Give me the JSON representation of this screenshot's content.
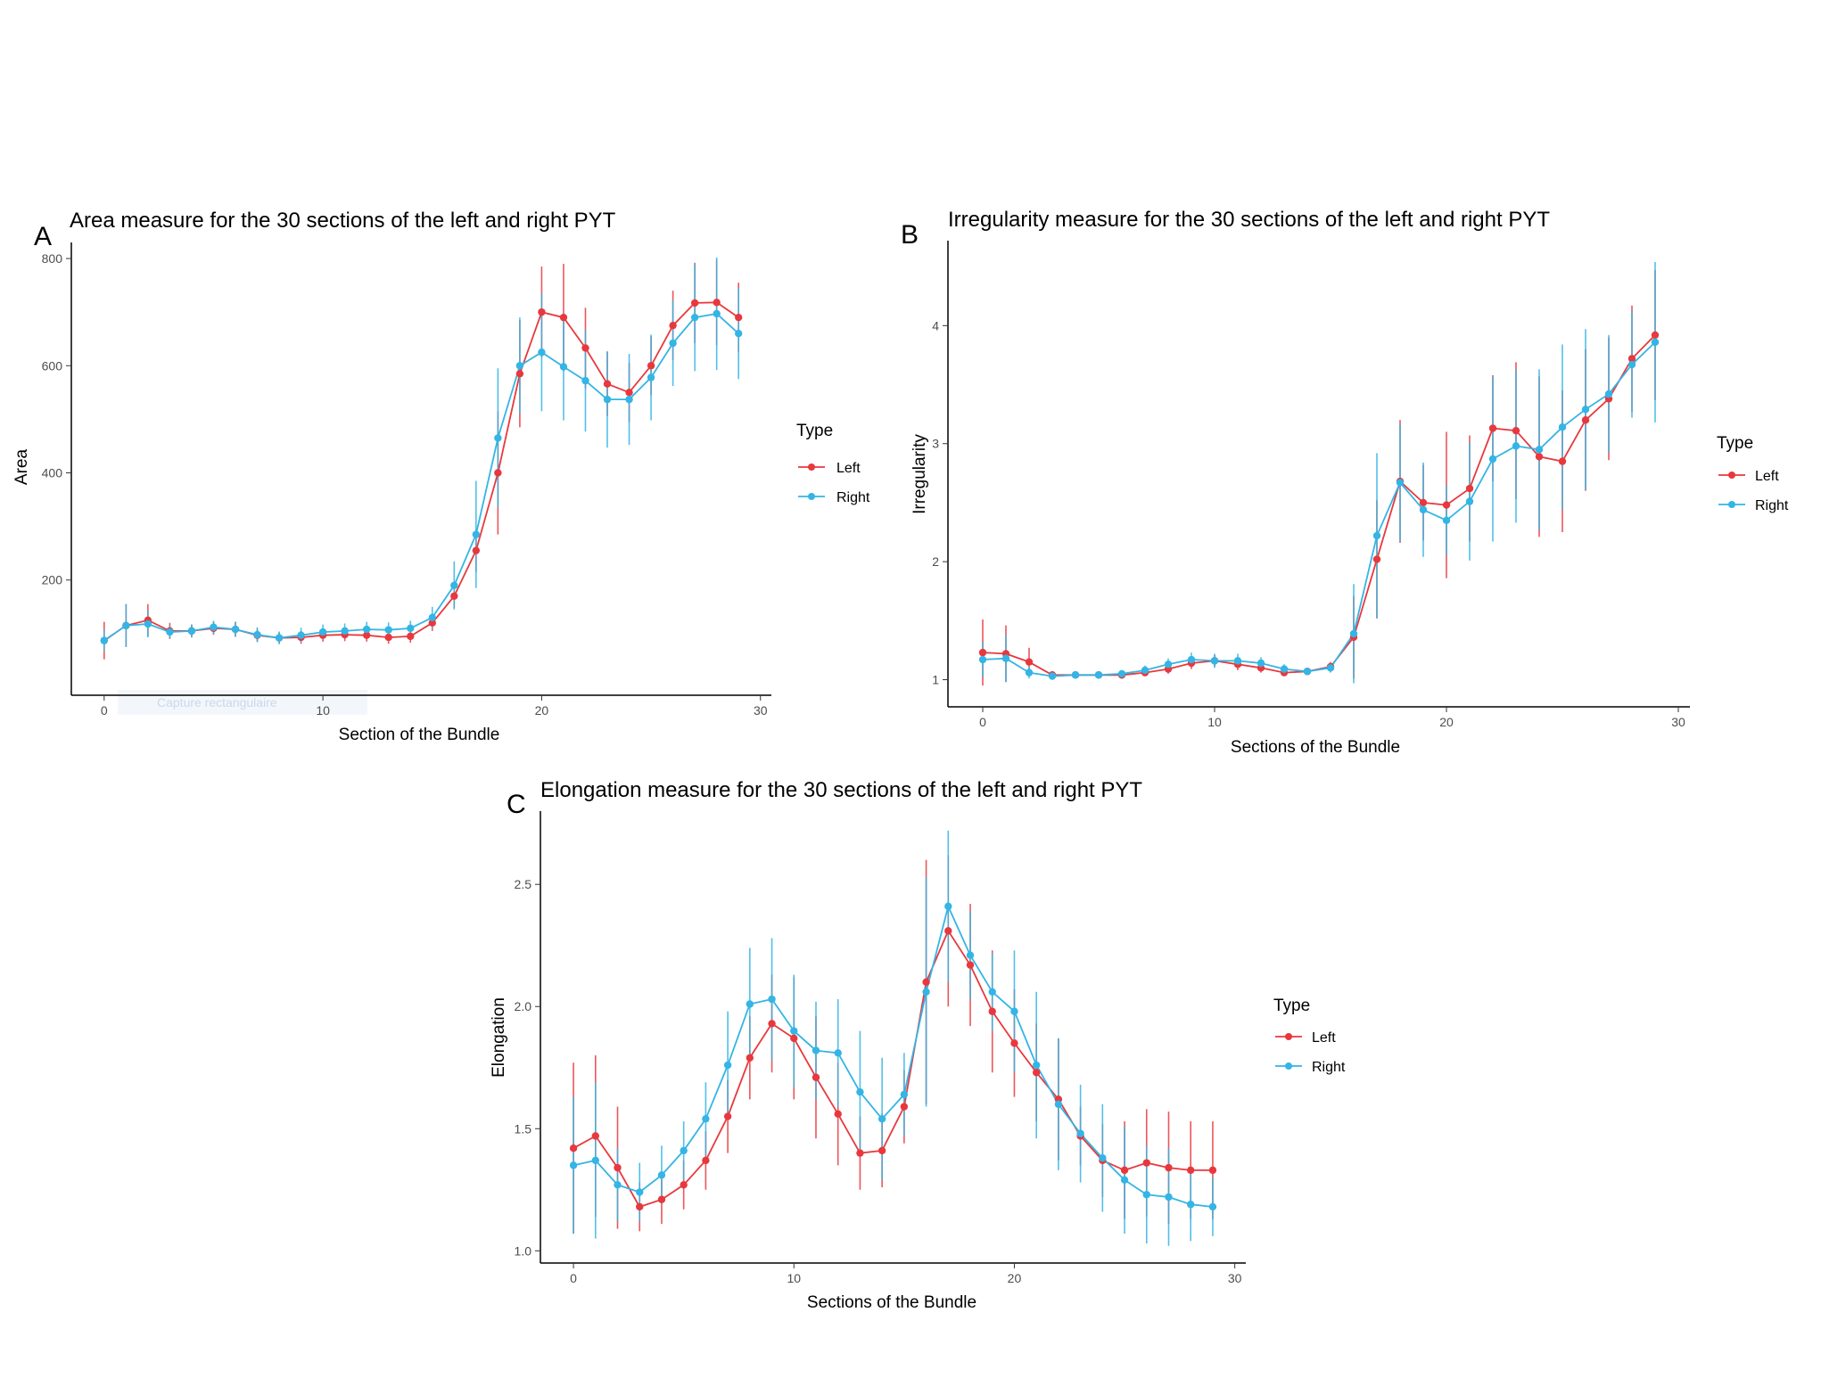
{
  "colors": {
    "left": "#e8383d",
    "right": "#33b5e5",
    "axis": "#000000",
    "tick": "#4d4d4d",
    "overlap": "#4a7aa8"
  },
  "overlay_text": "Capture rectangulaire",
  "chart_data": [
    {
      "id": "A",
      "type": "line",
      "panel_label": "A",
      "title": "Area measure for the 30 sections of the left and right PYT",
      "xlabel": "Section of the Bundle",
      "ylabel": "Area",
      "xlim": [
        -1.5,
        30.5
      ],
      "ylim": [
        -15,
        830
      ],
      "x_ticks": [
        0,
        10,
        20,
        30
      ],
      "y_ticks": [
        200,
        400,
        600,
        800
      ],
      "grid": false,
      "legend": {
        "title": "Type",
        "position": "right",
        "entries": [
          "Left",
          "Right"
        ]
      },
      "x": [
        0,
        1,
        2,
        3,
        4,
        5,
        6,
        7,
        8,
        9,
        10,
        11,
        12,
        13,
        14,
        15,
        16,
        17,
        18,
        19,
        20,
        21,
        22,
        23,
        24,
        25,
        26,
        27,
        28,
        29
      ],
      "series": [
        {
          "name": "Left",
          "color_key": "left",
          "values": [
            87,
            115,
            125,
            105,
            105,
            110,
            108,
            97,
            92,
            93,
            97,
            98,
            97,
            93,
            95,
            120,
            170,
            255,
            400,
            585,
            700,
            690,
            633,
            566,
            550,
            600,
            675,
            717,
            718,
            690
          ],
          "err": [
            35,
            40,
            30,
            15,
            12,
            12,
            14,
            12,
            10,
            12,
            12,
            12,
            12,
            12,
            12,
            15,
            22,
            40,
            115,
            100,
            85,
            100,
            75,
            60,
            55,
            55,
            65,
            75,
            80,
            65
          ]
        },
        {
          "name": "Right",
          "color_key": "right",
          "values": [
            87,
            115,
            118,
            103,
            105,
            112,
            108,
            98,
            92,
            97,
            103,
            105,
            108,
            107,
            110,
            130,
            190,
            285,
            465,
            600,
            625,
            598,
            572,
            537,
            537,
            578,
            642,
            690,
            697,
            660
          ],
          "err": [
            20,
            40,
            25,
            12,
            12,
            12,
            14,
            14,
            12,
            14,
            14,
            14,
            14,
            14,
            14,
            20,
            45,
            100,
            130,
            90,
            110,
            100,
            95,
            90,
            85,
            80,
            80,
            100,
            105,
            85
          ]
        }
      ]
    },
    {
      "id": "B",
      "type": "line",
      "panel_label": "B",
      "title": "Irregularity measure for the 30 sections of the left and right PYT",
      "xlabel": "Sections of the Bundle",
      "ylabel": "Irregularity",
      "xlim": [
        -1.5,
        30.5
      ],
      "ylim": [
        0.77,
        4.72
      ],
      "x_ticks": [
        0,
        10,
        20,
        30
      ],
      "y_ticks": [
        1,
        2,
        3,
        4
      ],
      "grid": false,
      "legend": {
        "title": "Type",
        "position": "right",
        "entries": [
          "Left",
          "Right"
        ]
      },
      "x": [
        0,
        1,
        2,
        3,
        4,
        5,
        6,
        7,
        8,
        9,
        10,
        11,
        12,
        13,
        14,
        15,
        16,
        17,
        18,
        19,
        20,
        21,
        22,
        23,
        24,
        25,
        26,
        27,
        28,
        29
      ],
      "series": [
        {
          "name": "Left",
          "color_key": "left",
          "values": [
            1.23,
            1.22,
            1.15,
            1.04,
            1.04,
            1.04,
            1.04,
            1.06,
            1.09,
            1.14,
            1.16,
            1.13,
            1.1,
            1.06,
            1.07,
            1.11,
            1.36,
            2.02,
            2.68,
            2.5,
            2.48,
            2.62,
            3.13,
            3.11,
            2.89,
            2.85,
            3.2,
            3.38,
            3.72,
            3.92
          ],
          "err": [
            0.28,
            0.24,
            0.12,
            0.03,
            0.02,
            0.02,
            0.03,
            0.03,
            0.04,
            0.05,
            0.05,
            0.05,
            0.04,
            0.03,
            0.03,
            0.04,
            0.35,
            0.5,
            0.52,
            0.32,
            0.62,
            0.45,
            0.45,
            0.58,
            0.68,
            0.6,
            0.6,
            0.52,
            0.45,
            0.55
          ]
        },
        {
          "name": "Right",
          "color_key": "right",
          "values": [
            1.17,
            1.18,
            1.06,
            1.03,
            1.04,
            1.04,
            1.05,
            1.08,
            1.13,
            1.17,
            1.16,
            1.16,
            1.14,
            1.09,
            1.07,
            1.1,
            1.39,
            2.22,
            2.67,
            2.44,
            2.35,
            2.51,
            2.87,
            2.98,
            2.95,
            3.14,
            3.29,
            3.42,
            3.67,
            3.86
          ],
          "err": [
            0.15,
            0.2,
            0.05,
            0.02,
            0.02,
            0.02,
            0.03,
            0.04,
            0.05,
            0.06,
            0.06,
            0.06,
            0.05,
            0.04,
            0.03,
            0.04,
            0.42,
            0.7,
            0.5,
            0.4,
            0.3,
            0.5,
            0.7,
            0.65,
            0.68,
            0.7,
            0.68,
            0.5,
            0.45,
            0.68
          ]
        }
      ]
    },
    {
      "id": "C",
      "type": "line",
      "panel_label": "C",
      "title": "Elongation measure for the 30 sections of the left and right PYT",
      "xlabel": "Sections of the Bundle",
      "ylabel": "Elongation",
      "xlim": [
        -1.5,
        30.5
      ],
      "ylim": [
        0.95,
        2.8
      ],
      "x_ticks": [
        0,
        10,
        20,
        30
      ],
      "y_ticks": [
        1.0,
        1.5,
        2.0,
        2.5
      ],
      "grid": false,
      "legend": {
        "title": "Type",
        "position": "right",
        "entries": [
          "Left",
          "Right"
        ]
      },
      "x": [
        0,
        1,
        2,
        3,
        4,
        5,
        6,
        7,
        8,
        9,
        10,
        11,
        12,
        13,
        14,
        15,
        16,
        17,
        18,
        19,
        20,
        21,
        22,
        23,
        24,
        25,
        26,
        27,
        28,
        29
      ],
      "series": [
        {
          "name": "Left",
          "color_key": "left",
          "values": [
            1.42,
            1.47,
            1.34,
            1.18,
            1.21,
            1.27,
            1.37,
            1.55,
            1.79,
            1.93,
            1.87,
            1.71,
            1.56,
            1.4,
            1.41,
            1.59,
            2.1,
            2.31,
            2.17,
            1.98,
            1.85,
            1.73,
            1.62,
            1.47,
            1.37,
            1.33,
            1.36,
            1.34,
            1.33,
            1.33
          ],
          "err": [
            0.35,
            0.33,
            0.25,
            0.1,
            0.1,
            0.1,
            0.12,
            0.15,
            0.17,
            0.2,
            0.25,
            0.25,
            0.21,
            0.15,
            0.15,
            0.15,
            0.5,
            0.31,
            0.25,
            0.25,
            0.22,
            0.2,
            0.25,
            0.12,
            0.15,
            0.2,
            0.22,
            0.23,
            0.2,
            0.2
          ]
        },
        {
          "name": "Right",
          "color_key": "right",
          "values": [
            1.35,
            1.37,
            1.27,
            1.24,
            1.31,
            1.41,
            1.54,
            1.76,
            2.01,
            2.03,
            1.9,
            1.82,
            1.81,
            1.65,
            1.54,
            1.64,
            2.06,
            2.41,
            2.21,
            2.06,
            1.98,
            1.76,
            1.6,
            1.48,
            1.38,
            1.29,
            1.23,
            1.22,
            1.19,
            1.18
          ],
          "err": [
            0.28,
            0.32,
            0.15,
            0.12,
            0.12,
            0.12,
            0.15,
            0.22,
            0.23,
            0.25,
            0.23,
            0.2,
            0.22,
            0.25,
            0.25,
            0.17,
            0.47,
            0.31,
            0.18,
            0.16,
            0.25,
            0.3,
            0.27,
            0.2,
            0.22,
            0.22,
            0.2,
            0.2,
            0.15,
            0.12
          ]
        }
      ]
    }
  ]
}
